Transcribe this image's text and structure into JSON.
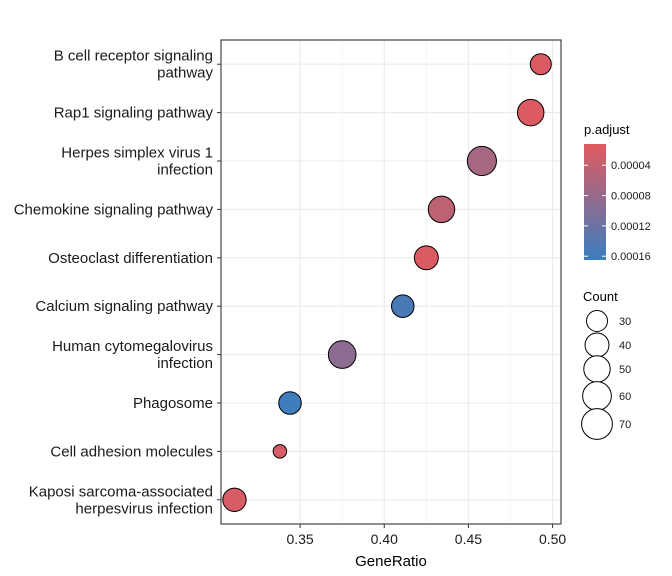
{
  "chart_data": {
    "type": "scatter",
    "xlabel": "GeneRatio",
    "ylabel": "",
    "xlim": [
      0.303,
      0.505
    ],
    "xticks": [
      "0.35",
      "0.40",
      "0.45",
      "0.50"
    ],
    "xtick_values": [
      0.35,
      0.4,
      0.45,
      0.5
    ],
    "grid": true,
    "categories": [
      {
        "label_lines": [
          "B cell receptor signaling",
          "pathway"
        ],
        "x": 0.493,
        "count": 30,
        "p_adjust": 1.8e-05
      },
      {
        "label_lines": [
          "Rap1 signaling pathway"
        ],
        "x": 0.487,
        "count": 50,
        "p_adjust": 1.7e-05
      },
      {
        "label_lines": [
          "Herpes simplex virus 1",
          "infection"
        ],
        "x": 0.458,
        "count": 62,
        "p_adjust": 6.5e-05
      },
      {
        "label_lines": [
          "Chemokine signaling pathway"
        ],
        "x": 0.434,
        "count": 50,
        "p_adjust": 4.5e-05
      },
      {
        "label_lines": [
          "Osteoclast differentiation"
        ],
        "x": 0.425,
        "count": 40,
        "p_adjust": 1.8e-05
      },
      {
        "label_lines": [
          "Calcium signaling pathway"
        ],
        "x": 0.411,
        "count": 35,
        "p_adjust": 0.00015
      },
      {
        "label_lines": [
          "Human cytomegalovirus",
          "infection"
        ],
        "x": 0.375,
        "count": 55,
        "p_adjust": 9e-05
      },
      {
        "label_lines": [
          "Phagosome"
        ],
        "x": 0.344,
        "count": 35,
        "p_adjust": 0.00016
      },
      {
        "label_lines": [
          "Cell adhesion molecules"
        ],
        "x": 0.338,
        "count": 12,
        "p_adjust": 2e-05
      },
      {
        "label_lines": [
          "Kaposi sarcoma-associated",
          "herpesvirus infection"
        ],
        "x": 0.311,
        "count": 38,
        "p_adjust": 2e-05
      }
    ],
    "legend_color": {
      "title": "p.adjust",
      "labels": [
        "0.00004",
        "0.00008",
        "0.00012",
        "0.00016"
      ],
      "values": [
        4e-05,
        8e-05,
        0.00012,
        0.00016
      ],
      "range": [
        1.2e-05,
        0.000165
      ],
      "low_color": "#E15A60",
      "high_color": "#3A7EBF",
      "placement": "right"
    },
    "legend_size": {
      "title": "Count",
      "labels": [
        "30",
        "40",
        "50",
        "60",
        "70"
      ],
      "values": [
        30,
        40,
        50,
        60,
        70
      ],
      "placement": "right"
    }
  }
}
